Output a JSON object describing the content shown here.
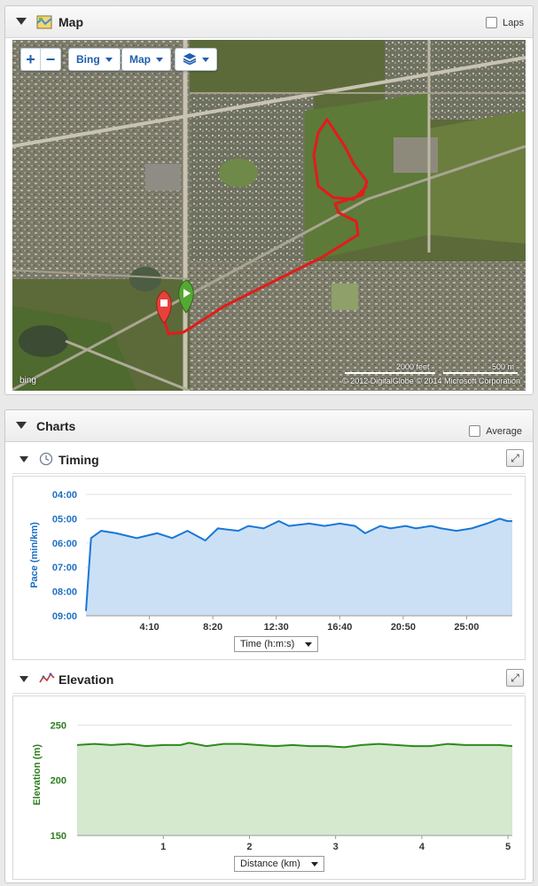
{
  "map_panel": {
    "title": "Map",
    "laps_label": "Laps",
    "controls": {
      "zoom_in": "+",
      "zoom_out": "−",
      "imagery_label": "Bing",
      "type_label": "Map"
    },
    "scale_feet": "2000 feet",
    "scale_m": "500 m",
    "copyright": "© 2012 DigitalGlobe   © 2014 Microsoft Corporation",
    "bing_label": "bing"
  },
  "charts_panel": {
    "title": "Charts",
    "average_label": "Average",
    "timing": {
      "title": "Timing",
      "axis_select": "Time (h:m:s)"
    },
    "elevation": {
      "title": "Elevation",
      "axis_select": "Distance (km)"
    }
  },
  "colors": {
    "pace_line": "#1878d8",
    "pace_fill": "#cce0f5",
    "elev_line": "#2e8a1e",
    "elev_fill": "#d5e9cf",
    "route": "#e31b1b"
  },
  "chart_data": [
    {
      "type": "area",
      "ylabel": "Pace (min/km)",
      "y_inverted": true,
      "ylim": [
        "04:00",
        "09:00"
      ],
      "yticks": [
        "04:00",
        "05:00",
        "06:00",
        "07:00",
        "08:00",
        "09:00"
      ],
      "xticks": [
        "4:10",
        "8:20",
        "12:30",
        "16:40",
        "20:50",
        "25:00"
      ],
      "xlim_seconds": [
        0,
        1680
      ],
      "series": [
        {
          "x_seconds": [
            0,
            20,
            60,
            120,
            200,
            280,
            340,
            400,
            470,
            520,
            600,
            640,
            700,
            760,
            800,
            880,
            940,
            1000,
            1060,
            1100,
            1160,
            1200,
            1260,
            1300,
            1360,
            1400,
            1460,
            1520,
            1580,
            1630,
            1660,
            1680
          ],
          "pace_minutes": [
            8.8,
            5.8,
            5.5,
            5.6,
            5.8,
            5.6,
            5.8,
            5.5,
            5.9,
            5.4,
            5.5,
            5.3,
            5.4,
            5.1,
            5.3,
            5.2,
            5.3,
            5.2,
            5.3,
            5.6,
            5.3,
            5.4,
            5.3,
            5.4,
            5.3,
            5.4,
            5.5,
            5.4,
            5.2,
            5.0,
            5.1,
            5.1
          ]
        }
      ]
    },
    {
      "type": "area",
      "ylabel": "Elevation (m)",
      "ylim": [
        150,
        260
      ],
      "yticks": [
        150,
        200,
        250
      ],
      "xticks": [
        1,
        2,
        3,
        4,
        5
      ],
      "xlim": [
        0,
        5.05
      ],
      "series": [
        {
          "x_km": [
            0,
            0.2,
            0.4,
            0.6,
            0.8,
            1.0,
            1.2,
            1.3,
            1.5,
            1.7,
            1.9,
            2.1,
            2.3,
            2.5,
            2.7,
            2.9,
            3.1,
            3.3,
            3.5,
            3.7,
            3.9,
            4.1,
            4.3,
            4.5,
            4.7,
            4.9,
            5.05
          ],
          "elevation_m": [
            232,
            233,
            232,
            233,
            231,
            232,
            232,
            234,
            231,
            233,
            233,
            232,
            231,
            232,
            231,
            231,
            230,
            232,
            233,
            232,
            231,
            231,
            233,
            232,
            232,
            232,
            231
          ]
        }
      ]
    }
  ]
}
